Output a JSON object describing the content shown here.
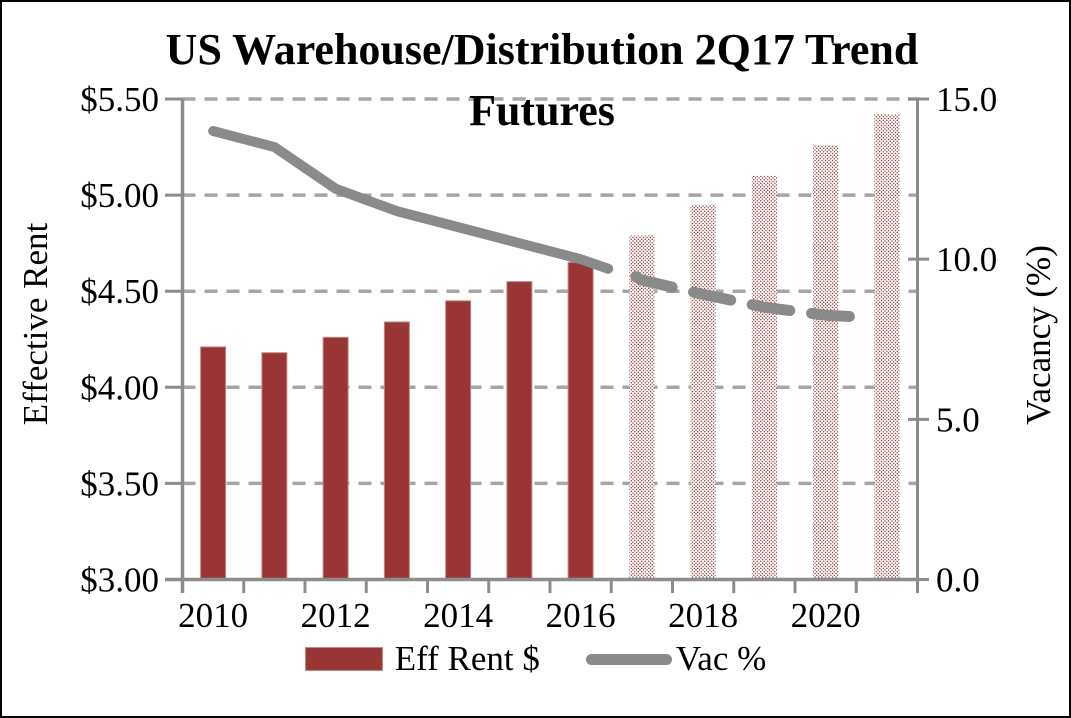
{
  "colors": {
    "bar_fill": "#993534",
    "bar_border": "#c08a88",
    "dot_pattern": "#8f3b39",
    "line_gray": "#8a8a8a",
    "grid_gray": "#a6a6a6",
    "axis_gray": "#8c8c8c",
    "text": "#000000"
  },
  "chart_data": {
    "type": "bar+line-combo",
    "title": {
      "line1": "US Warehouse/Distribution 2Q17 Trend",
      "line2": "Futures"
    },
    "categories": [
      2010,
      2011,
      2012,
      2013,
      2014,
      2015,
      2016,
      2017,
      2018,
      2019,
      2020,
      2021
    ],
    "series": [
      {
        "name": "Eff Rent $",
        "type": "bar",
        "axis": "left",
        "values": [
          4.21,
          4.18,
          4.26,
          4.34,
          4.45,
          4.55,
          4.65,
          4.79,
          4.95,
          5.1,
          5.26,
          5.42
        ],
        "forecast_start_year": 2017,
        "forecast_style": "dotted-pattern"
      },
      {
        "name": "Vac %",
        "type": "line",
        "axis": "right",
        "actual": {
          "x": [
            2010,
            2011,
            2012,
            2013,
            2014,
            2015,
            2016,
            2016.45
          ],
          "values": [
            14.0,
            13.5,
            12.2,
            11.5,
            11.0,
            10.5,
            10.0,
            9.7
          ]
        },
        "forecast": {
          "x": [
            2016.9,
            2017,
            2018,
            2019,
            2020,
            2020.5
          ],
          "values": [
            9.45,
            9.35,
            8.9,
            8.5,
            8.25,
            8.2
          ],
          "style": "dashed"
        }
      }
    ],
    "left_axis": {
      "title": "Effective Rent",
      "min": 3.0,
      "max": 5.5,
      "step": 0.5,
      "ticks": [
        "$3.00",
        "$3.50",
        "$4.00",
        "$4.50",
        "$5.00",
        "$5.50"
      ]
    },
    "right_axis": {
      "title": "Vacancy (%)",
      "min": 0.0,
      "max": 15.0,
      "step": 5.0,
      "ticks": [
        "0.0",
        "5.0",
        "10.0",
        "15.0"
      ]
    },
    "x_axis": {
      "tick_labels": [
        "2010",
        "2012",
        "2014",
        "2016",
        "2018",
        "2020"
      ],
      "label_years": [
        2010,
        2012,
        2014,
        2016,
        2018,
        2020
      ]
    },
    "grid": "dashed-horizontal",
    "legend_position": "bottom"
  },
  "legend": [
    {
      "label": "Eff Rent $",
      "swatch": "bar"
    },
    {
      "label": "Vac %",
      "swatch": "line"
    }
  ]
}
